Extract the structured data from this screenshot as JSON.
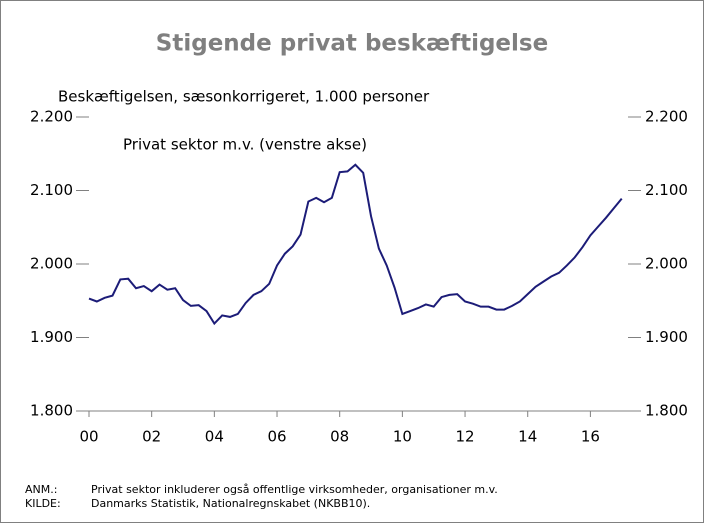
{
  "chart_data": {
    "type": "line",
    "title": "Stigende privat beskæftigelse",
    "subtitle": "Beskæftigelsen, sæsonkorrigeret, 1.000 personer",
    "x": [
      2000,
      2000.25,
      2000.5,
      2000.75,
      2001,
      2001.25,
      2001.5,
      2001.75,
      2002,
      2002.25,
      2002.5,
      2002.75,
      2003,
      2003.25,
      2003.5,
      2003.75,
      2004,
      2004.25,
      2004.5,
      2004.75,
      2005,
      2005.25,
      2005.5,
      2005.75,
      2006,
      2006.25,
      2006.5,
      2006.75,
      2007,
      2007.25,
      2007.5,
      2007.75,
      2008,
      2008.25,
      2008.5,
      2008.75,
      2009,
      2009.25,
      2009.5,
      2009.75,
      2010,
      2010.25,
      2010.5,
      2010.75,
      2011,
      2011.25,
      2011.5,
      2011.75,
      2012,
      2012.25,
      2012.5,
      2012.75,
      2013,
      2013.25,
      2013.5,
      2013.75,
      2014,
      2014.25,
      2014.5,
      2014.75,
      2015,
      2015.25,
      2015.5,
      2015.75,
      2016,
      2016.25,
      2016.5,
      2016.75,
      2017
    ],
    "series": [
      {
        "name": "Privat sektor m.v. (venstre akse)",
        "color": "#1c1c78",
        "values": [
          1953,
          1949,
          1954,
          1957,
          1979,
          1980,
          1967,
          1970,
          1963,
          1972,
          1965,
          1967,
          1951,
          1943,
          1944,
          1936,
          1919,
          1930,
          1928,
          1932,
          1947,
          1958,
          1963,
          1973,
          1998,
          2014,
          2024,
          2040,
          2085,
          2090,
          2084,
          2090,
          2125,
          2126,
          2135,
          2124,
          2065,
          2021,
          1998,
          1968,
          1932,
          1936,
          1940,
          1945,
          1942,
          1955,
          1958,
          1959,
          1949,
          1946,
          1942,
          1942,
          1938,
          1938,
          1943,
          1949,
          1959,
          1969,
          1976,
          1983,
          1988,
          1998,
          2009,
          2023,
          2039,
          2051,
          2063,
          2076,
          2089
        ]
      }
    ],
    "xlim": [
      2000,
      2017.2
    ],
    "xticks": [
      {
        "value": 2000,
        "label": "00"
      },
      {
        "value": 2002,
        "label": "02"
      },
      {
        "value": 2004,
        "label": "04"
      },
      {
        "value": 2006,
        "label": "06"
      },
      {
        "value": 2008,
        "label": "08"
      },
      {
        "value": 2010,
        "label": "10"
      },
      {
        "value": 2012,
        "label": "12"
      },
      {
        "value": 2014,
        "label": "14"
      },
      {
        "value": 2016,
        "label": "16"
      }
    ],
    "ylim": [
      1800,
      2200
    ],
    "yticks": [
      {
        "value": 1800,
        "label": "1.800"
      },
      {
        "value": 1900,
        "label": "1.900"
      },
      {
        "value": 2000,
        "label": "2.000"
      },
      {
        "value": 2100,
        "label": "2.100"
      },
      {
        "value": 2200,
        "label": "2.200"
      }
    ],
    "y2lim": [
      1800,
      2200
    ],
    "y2ticks": [
      {
        "value": 1800,
        "label": "1.800"
      },
      {
        "value": 1900,
        "label": "1.900"
      },
      {
        "value": 2000,
        "label": "2.000"
      },
      {
        "value": 2100,
        "label": "2.100"
      },
      {
        "value": 2200,
        "label": "2.200"
      }
    ],
    "notes": [
      {
        "label": "ANM.:",
        "text": "Privat sektor inkluderer også offentlige virksomheder, organisationer m.v."
      },
      {
        "label": "KILDE:",
        "text": "Danmarks Statistik, Nationalregnskabet (NKBB10)."
      }
    ]
  }
}
